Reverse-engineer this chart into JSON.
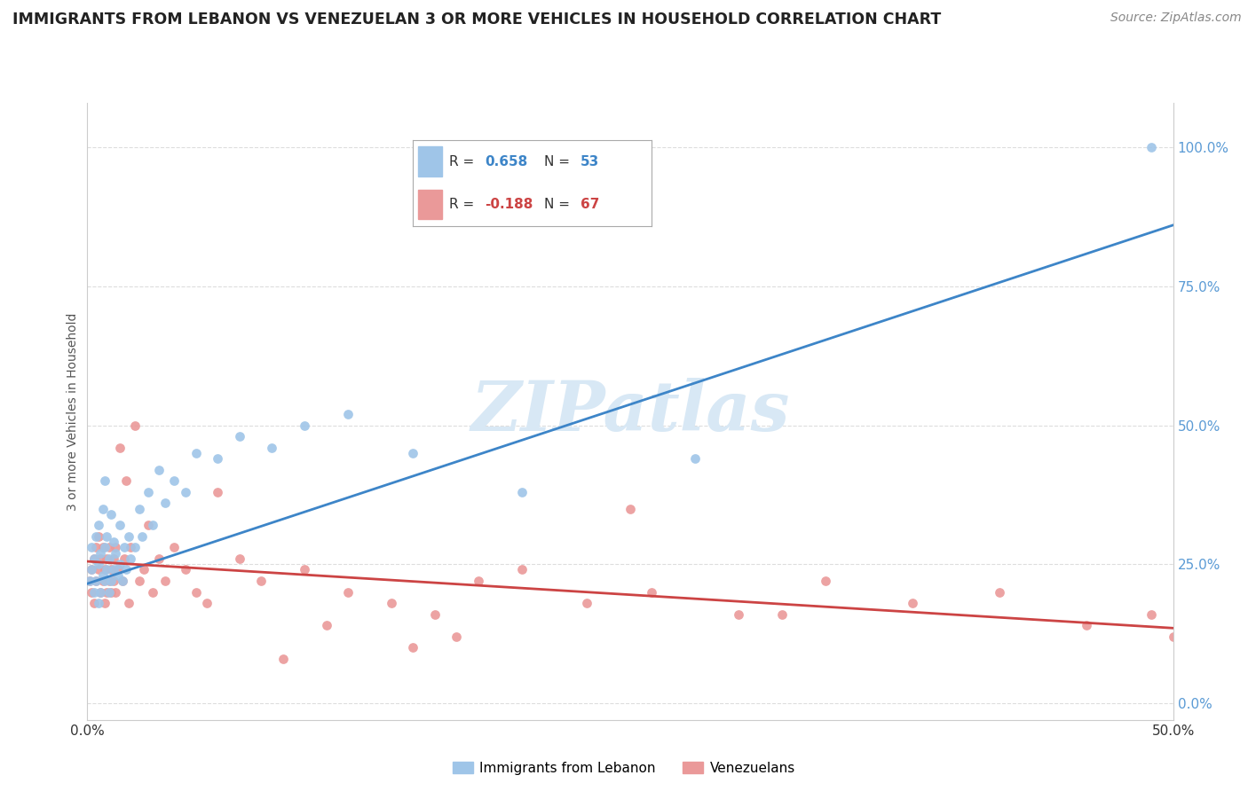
{
  "title": "IMMIGRANTS FROM LEBANON VS VENEZUELAN 3 OR MORE VEHICLES IN HOUSEHOLD CORRELATION CHART",
  "source": "Source: ZipAtlas.com",
  "ylabel": "3 or more Vehicles in Household",
  "xlim": [
    0.0,
    0.5
  ],
  "ylim": [
    -0.03,
    1.08
  ],
  "yticks": [
    0.0,
    0.25,
    0.5,
    0.75,
    1.0
  ],
  "ytick_labels": [
    "0.0%",
    "25.0%",
    "50.0%",
    "75.0%",
    "100.0%"
  ],
  "xtick_labels": [
    "0.0%",
    "50.0%"
  ],
  "legend_blue_r": "0.658",
  "legend_blue_n": "53",
  "legend_pink_r": "-0.188",
  "legend_pink_n": "67",
  "blue_color": "#9fc5e8",
  "pink_color": "#ea9999",
  "blue_line_color": "#3d85c8",
  "pink_line_color": "#cc4444",
  "watermark": "ZIPatlas",
  "blue_scatter_x": [
    0.001,
    0.002,
    0.002,
    0.003,
    0.003,
    0.004,
    0.004,
    0.005,
    0.005,
    0.005,
    0.006,
    0.006,
    0.007,
    0.007,
    0.008,
    0.008,
    0.008,
    0.009,
    0.009,
    0.01,
    0.01,
    0.011,
    0.011,
    0.012,
    0.012,
    0.013,
    0.014,
    0.015,
    0.015,
    0.016,
    0.017,
    0.018,
    0.019,
    0.02,
    0.022,
    0.024,
    0.025,
    0.028,
    0.03,
    0.033,
    0.036,
    0.04,
    0.045,
    0.05,
    0.06,
    0.07,
    0.085,
    0.1,
    0.12,
    0.15,
    0.2,
    0.28,
    0.49
  ],
  "blue_scatter_y": [
    0.22,
    0.24,
    0.28,
    0.2,
    0.26,
    0.22,
    0.3,
    0.18,
    0.25,
    0.32,
    0.2,
    0.27,
    0.23,
    0.35,
    0.22,
    0.28,
    0.4,
    0.24,
    0.3,
    0.2,
    0.26,
    0.22,
    0.34,
    0.24,
    0.29,
    0.27,
    0.23,
    0.25,
    0.32,
    0.22,
    0.28,
    0.24,
    0.3,
    0.26,
    0.28,
    0.35,
    0.3,
    0.38,
    0.32,
    0.42,
    0.36,
    0.4,
    0.38,
    0.45,
    0.44,
    0.48,
    0.46,
    0.5,
    0.52,
    0.45,
    0.38,
    0.44,
    1.0
  ],
  "pink_scatter_x": [
    0.001,
    0.002,
    0.002,
    0.003,
    0.003,
    0.004,
    0.004,
    0.005,
    0.005,
    0.006,
    0.006,
    0.007,
    0.007,
    0.008,
    0.008,
    0.009,
    0.009,
    0.01,
    0.01,
    0.011,
    0.011,
    0.012,
    0.012,
    0.013,
    0.013,
    0.014,
    0.015,
    0.016,
    0.017,
    0.018,
    0.019,
    0.02,
    0.022,
    0.024,
    0.026,
    0.028,
    0.03,
    0.033,
    0.036,
    0.04,
    0.045,
    0.05,
    0.06,
    0.07,
    0.08,
    0.1,
    0.12,
    0.14,
    0.16,
    0.18,
    0.2,
    0.23,
    0.26,
    0.3,
    0.34,
    0.38,
    0.42,
    0.46,
    0.49,
    0.5,
    0.15,
    0.09,
    0.25,
    0.055,
    0.11,
    0.17,
    0.32
  ],
  "pink_scatter_y": [
    0.22,
    0.24,
    0.2,
    0.26,
    0.18,
    0.28,
    0.22,
    0.24,
    0.3,
    0.2,
    0.26,
    0.22,
    0.28,
    0.18,
    0.24,
    0.2,
    0.26,
    0.22,
    0.28,
    0.2,
    0.24,
    0.26,
    0.22,
    0.28,
    0.2,
    0.24,
    0.46,
    0.22,
    0.26,
    0.4,
    0.18,
    0.28,
    0.5,
    0.22,
    0.24,
    0.32,
    0.2,
    0.26,
    0.22,
    0.28,
    0.24,
    0.2,
    0.38,
    0.26,
    0.22,
    0.24,
    0.2,
    0.18,
    0.16,
    0.22,
    0.24,
    0.18,
    0.2,
    0.16,
    0.22,
    0.18,
    0.2,
    0.14,
    0.16,
    0.12,
    0.1,
    0.08,
    0.35,
    0.18,
    0.14,
    0.12,
    0.16
  ]
}
